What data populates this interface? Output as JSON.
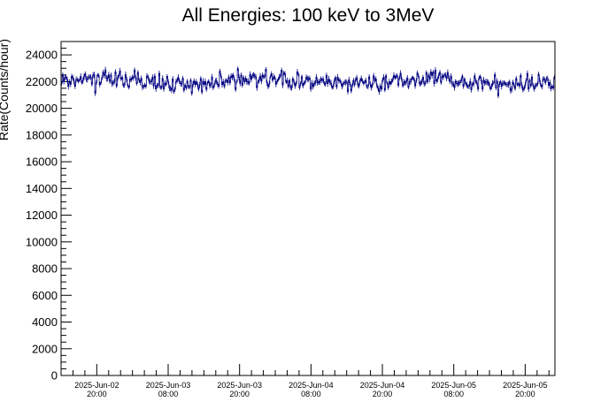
{
  "chart_data": {
    "type": "line",
    "title": "All Energies:  100 keV to 3MeV",
    "xlabel": "",
    "ylabel": "Rate(Counts/hour)",
    "ylim": [
      0,
      25000
    ],
    "y_ticks": [
      0,
      2000,
      4000,
      6000,
      8000,
      10000,
      12000,
      14000,
      16000,
      18000,
      20000,
      22000,
      24000
    ],
    "x_tick_labels": [
      {
        "date": "2025-Jun-02",
        "time": "20:00"
      },
      {
        "date": "2025-Jun-03",
        "time": "08:00"
      },
      {
        "date": "2025-Jun-03",
        "time": "20:00"
      },
      {
        "date": "2025-Jun-04",
        "time": "08:00"
      },
      {
        "date": "2025-Jun-04",
        "time": "20:00"
      },
      {
        "date": "2025-Jun-05",
        "time": "08:00"
      },
      {
        "date": "2025-Jun-05",
        "time": "20:00"
      }
    ],
    "grid": false,
    "legend": "none",
    "series": [
      {
        "color": "#000080",
        "style": "histogram with error bars",
        "x_range": [
          "2025-Jun-02 14:00",
          "2025-Jun-06 01:00"
        ],
        "mean_rate": 22000,
        "typical_range": [
          21000,
          23000
        ],
        "min_approx": 20700,
        "max_approx": 23600
      }
    ]
  }
}
